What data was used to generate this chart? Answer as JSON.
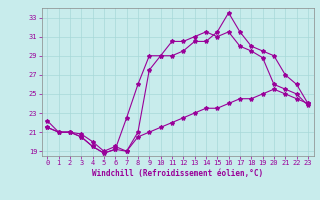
{
  "title": "",
  "xlabel": "Windchill (Refroidissement éolien,°C)",
  "ylabel": "",
  "background_color": "#c8ecec",
  "grid_color": "#a8d8d8",
  "line_color": "#990099",
  "xlim": [
    -0.5,
    23.5
  ],
  "ylim": [
    18.5,
    34.0
  ],
  "xticks": [
    0,
    1,
    2,
    3,
    4,
    5,
    6,
    7,
    8,
    9,
    10,
    11,
    12,
    13,
    14,
    15,
    16,
    17,
    18,
    19,
    20,
    21,
    22,
    23
  ],
  "yticks": [
    19,
    21,
    23,
    25,
    27,
    29,
    31,
    33
  ],
  "line1_x": [
    0,
    1,
    2,
    3,
    4,
    5,
    6,
    7,
    8,
    9,
    10,
    11,
    12,
    13,
    14,
    15,
    16,
    17,
    18,
    19,
    20,
    21,
    22,
    23
  ],
  "line1_y": [
    22.2,
    21.0,
    21.0,
    20.8,
    20.0,
    19.0,
    19.5,
    19.0,
    21.0,
    27.5,
    29.0,
    29.0,
    29.5,
    30.5,
    30.5,
    31.5,
    33.5,
    31.5,
    30.0,
    29.5,
    29.0,
    27.0,
    26.0,
    24.0
  ],
  "line2_x": [
    0,
    1,
    2,
    3,
    4,
    5,
    6,
    7,
    8,
    9,
    10,
    11,
    12,
    13,
    14,
    15,
    16,
    17,
    18,
    19,
    20,
    21,
    22,
    23
  ],
  "line2_y": [
    21.5,
    21.0,
    21.0,
    20.5,
    19.5,
    18.8,
    19.2,
    22.5,
    26.0,
    29.0,
    29.0,
    30.5,
    30.5,
    31.0,
    31.5,
    31.0,
    31.5,
    30.0,
    29.5,
    28.8,
    26.0,
    25.5,
    25.0,
    23.8
  ],
  "line3_x": [
    0,
    1,
    2,
    3,
    4,
    5,
    6,
    7,
    8,
    9,
    10,
    11,
    12,
    13,
    14,
    15,
    16,
    17,
    18,
    19,
    20,
    21,
    22,
    23
  ],
  "line3_y": [
    21.5,
    21.0,
    21.0,
    20.5,
    19.5,
    18.8,
    19.2,
    19.0,
    20.5,
    21.0,
    21.5,
    22.0,
    22.5,
    23.0,
    23.5,
    23.5,
    24.0,
    24.5,
    24.5,
    25.0,
    25.5,
    25.0,
    24.5,
    24.0
  ],
  "marker": "*",
  "markersize": 3,
  "linewidth": 0.8,
  "tick_fontsize": 5,
  "xlabel_fontsize": 5.5
}
